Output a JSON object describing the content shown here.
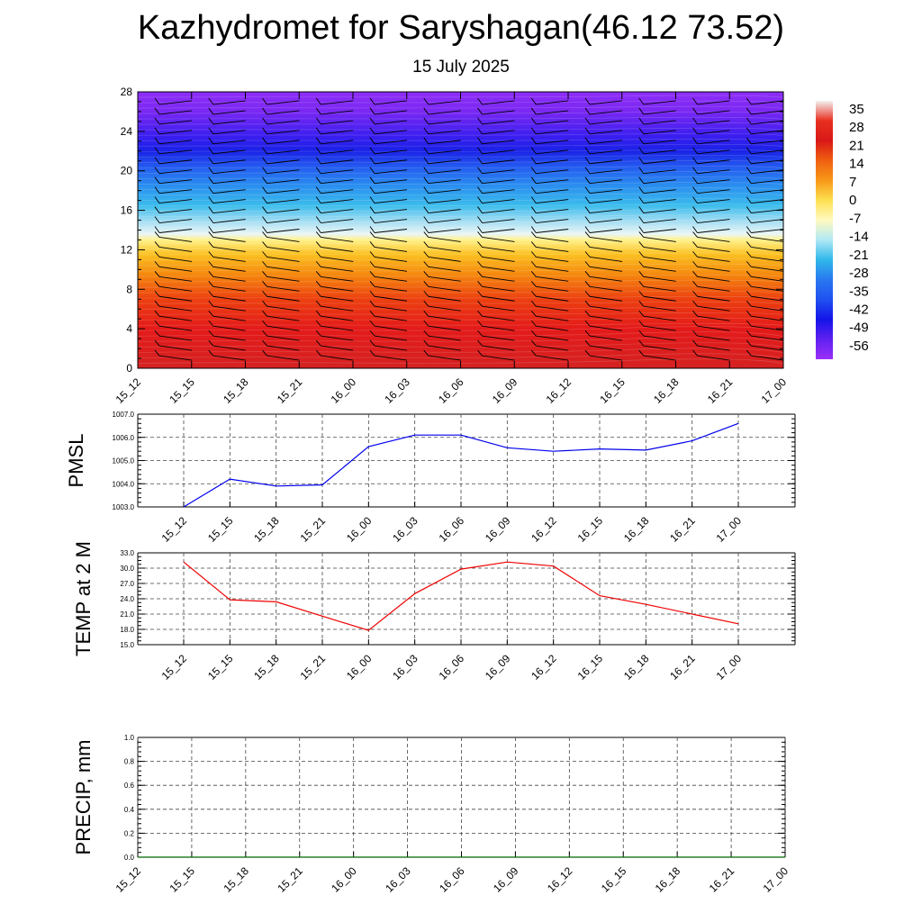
{
  "header": {
    "title": "Kazhydromet for Saryshagan(46.12 73.52)",
    "subtitle": "15 July 2025"
  },
  "chart_data": [
    {
      "type": "heatmap",
      "ylim": [
        0,
        28
      ],
      "yticks": [
        "0",
        "4",
        "8",
        "12",
        "16",
        "20",
        "24",
        "28"
      ],
      "xticks": [
        "15_12",
        "15_15",
        "15_18",
        "15_21",
        "16_00",
        "16_03",
        "16_06",
        "16_09",
        "16_12",
        "16_15",
        "16_18",
        "16_21",
        "17_00"
      ],
      "colorbar_labels": [
        "35",
        "28",
        "21",
        "14",
        "7",
        "0",
        "-7",
        "-14",
        "-21",
        "-28",
        "-35",
        "-42",
        "-49",
        "-56"
      ],
      "colorbar_stops": [
        "#f3f0f0",
        "#e83020",
        "#d91818",
        "#f06010",
        "#f89818",
        "#fde050",
        "#fffac0",
        "#b0e8f5",
        "#30b8ea",
        "#2878f0",
        "#2050f0",
        "#1414e8",
        "#6020f0",
        "#9a30f8"
      ],
      "colorscale": [
        {
          "y": 0,
          "color": "#d52222"
        },
        {
          "y": 4,
          "color": "#e41a1a"
        },
        {
          "y": 7,
          "color": "#ec4010"
        },
        {
          "y": 9.5,
          "color": "#f5880e"
        },
        {
          "y": 11.5,
          "color": "#fbc021"
        },
        {
          "y": 13,
          "color": "#fff18a"
        },
        {
          "y": 13.6,
          "color": "#eaf6f6"
        },
        {
          "y": 15,
          "color": "#9edcf3"
        },
        {
          "y": 16.5,
          "color": "#3bbcec"
        },
        {
          "y": 18.5,
          "color": "#2a8ef0"
        },
        {
          "y": 20.5,
          "color": "#2358f0"
        },
        {
          "y": 22,
          "color": "#1a22e6"
        },
        {
          "y": 23.5,
          "color": "#3a1ef0"
        },
        {
          "y": 26,
          "color": "#7a28f2"
        },
        {
          "y": 28,
          "color": "#8e2ef8"
        }
      ]
    },
    {
      "type": "line",
      "ylabel": "PMSL",
      "ylim": [
        1003.0,
        1007.0
      ],
      "yticks": [
        "1003.0",
        "1004.0",
        "1005.0",
        "1006.0",
        "1007.0"
      ],
      "x": [
        "15_12",
        "15_15",
        "15_18",
        "15_21",
        "16_00",
        "16_03",
        "16_06",
        "16_09",
        "16_12",
        "16_15",
        "16_18",
        "16_21",
        "17_00"
      ],
      "series": [
        {
          "color": "#0000ee",
          "values": [
            1003.0,
            1004.2,
            1003.9,
            1003.95,
            1005.6,
            1006.1,
            1006.1,
            1005.55,
            1005.4,
            1005.5,
            1005.45,
            1005.85,
            1006.6
          ]
        }
      ]
    },
    {
      "type": "line",
      "ylabel": "TEMP at 2 M",
      "ylim": [
        15.0,
        33.0
      ],
      "yticks": [
        "15.0",
        "18.0",
        "21.0",
        "24.0",
        "27.0",
        "30.0",
        "33.0"
      ],
      "x": [
        "15_12",
        "15_15",
        "15_18",
        "15_21",
        "16_00",
        "16_03",
        "16_06",
        "16_09",
        "16_12",
        "16_15",
        "16_18",
        "16_21",
        "17_00"
      ],
      "series": [
        {
          "color": "#ee0000",
          "values": [
            31.2,
            23.8,
            23.4,
            20.6,
            17.8,
            25.0,
            29.8,
            31.2,
            30.4,
            24.6,
            22.9,
            21.0,
            19.1
          ]
        }
      ]
    },
    {
      "type": "line",
      "ylabel": "PRECIP, mm",
      "ylim": [
        0.0,
        1.0
      ],
      "yticks": [
        "0.0",
        "0.2",
        "0.4",
        "0.6",
        "0.8",
        "1.0"
      ],
      "xticks": [
        "15_12",
        "15_15",
        "15_18",
        "15_21",
        "16_00",
        "16_03",
        "16_06",
        "16_09",
        "16_12",
        "16_15",
        "16_18",
        "16_21",
        "17_00"
      ],
      "series": [
        {
          "color": "#006400",
          "values": [
            0,
            0,
            0,
            0,
            0,
            0,
            0,
            0,
            0,
            0,
            0,
            0,
            0
          ]
        }
      ]
    }
  ]
}
